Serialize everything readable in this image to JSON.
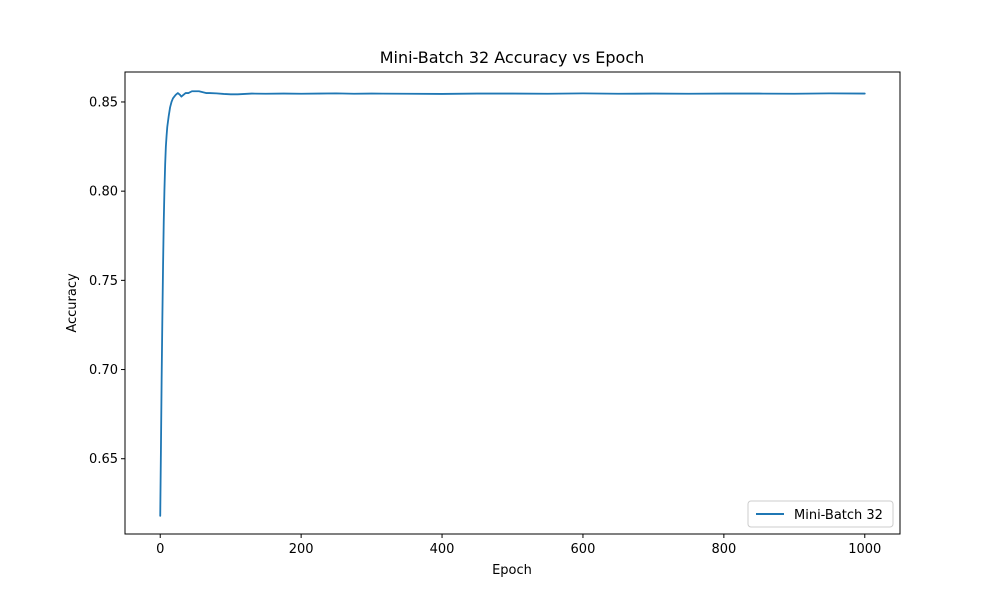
{
  "chart_data": {
    "type": "line",
    "title": "Mini-Batch 32 Accuracy vs Epoch",
    "xlabel": "Epoch",
    "ylabel": "Accuracy",
    "xlim": [
      -50,
      1050
    ],
    "ylim": [
      0.6078,
      0.8668
    ],
    "xticks": [
      0,
      200,
      400,
      600,
      800,
      1000
    ],
    "xtick_labels": [
      "0",
      "200",
      "400",
      "600",
      "800",
      "1000"
    ],
    "yticks": [
      0.65,
      0.7,
      0.75,
      0.8,
      0.85
    ],
    "ytick_labels": [
      "0.65",
      "0.70",
      "0.75",
      "0.80",
      "0.85"
    ],
    "grid": false,
    "legend_position": "lower-right",
    "series_color": "#1f77b4",
    "series": [
      {
        "name": "Mini-Batch 32",
        "x": [
          0,
          1,
          2,
          3,
          4,
          5,
          6,
          7,
          8,
          9,
          10,
          12,
          14,
          16,
          18,
          20,
          22,
          25,
          28,
          30,
          33,
          36,
          40,
          45,
          50,
          55,
          60,
          65,
          70,
          80,
          90,
          100,
          110,
          120,
          130,
          150,
          175,
          200,
          225,
          250,
          275,
          300,
          350,
          400,
          450,
          500,
          550,
          600,
          650,
          700,
          750,
          800,
          850,
          900,
          950,
          1000
        ],
        "y": [
          0.618,
          0.655,
          0.695,
          0.728,
          0.758,
          0.783,
          0.801,
          0.815,
          0.825,
          0.831,
          0.836,
          0.842,
          0.847,
          0.85,
          0.852,
          0.853,
          0.854,
          0.855,
          0.854,
          0.853,
          0.854,
          0.855,
          0.855,
          0.856,
          0.856,
          0.856,
          0.8555,
          0.855,
          0.855,
          0.8548,
          0.8545,
          0.8543,
          0.8543,
          0.8545,
          0.8547,
          0.8546,
          0.8547,
          0.8546,
          0.8547,
          0.8548,
          0.8546,
          0.8547,
          0.8546,
          0.8545,
          0.8547,
          0.8547,
          0.8546,
          0.8548,
          0.8546,
          0.8547,
          0.8546,
          0.8547,
          0.8547,
          0.8546,
          0.8548,
          0.8547
        ]
      }
    ]
  }
}
